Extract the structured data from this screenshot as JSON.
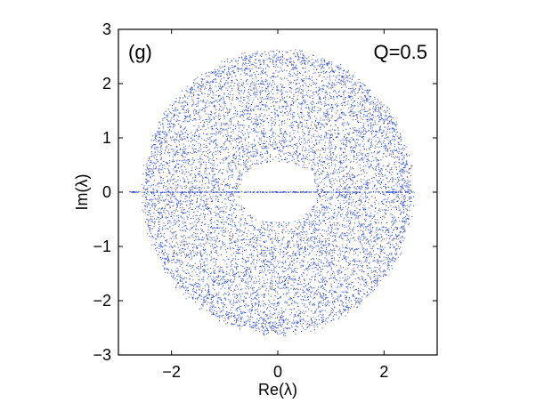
{
  "chart_data": {
    "type": "scatter",
    "xlabel": "Re(λ)",
    "ylabel": "Im(λ)",
    "xlim": [
      -3,
      3
    ],
    "ylim": [
      -3,
      3
    ],
    "xticks": [
      -2,
      0,
      2
    ],
    "xtick_labels": [
      "−2",
      "0",
      "2"
    ],
    "yticks": [
      3,
      2,
      1,
      0,
      -1,
      -2,
      -3
    ],
    "ytick_labels": [
      "3",
      "2",
      "1",
      "0",
      "−1",
      "−2",
      "−3"
    ],
    "grid": false,
    "annotations": {
      "panel": "(g)",
      "param": "Q=0.5"
    },
    "marker_color": "#1f3fd6",
    "series": [
      {
        "description_values": {
          "distribution": "annulus with real-axis line",
          "outer_radius": 2.6,
          "inner_radius_min": 0.55,
          "inner_radius_max": 0.75,
          "real_axis_x_range": [
            -2.8,
            2.6
          ]
        }
      }
    ]
  }
}
